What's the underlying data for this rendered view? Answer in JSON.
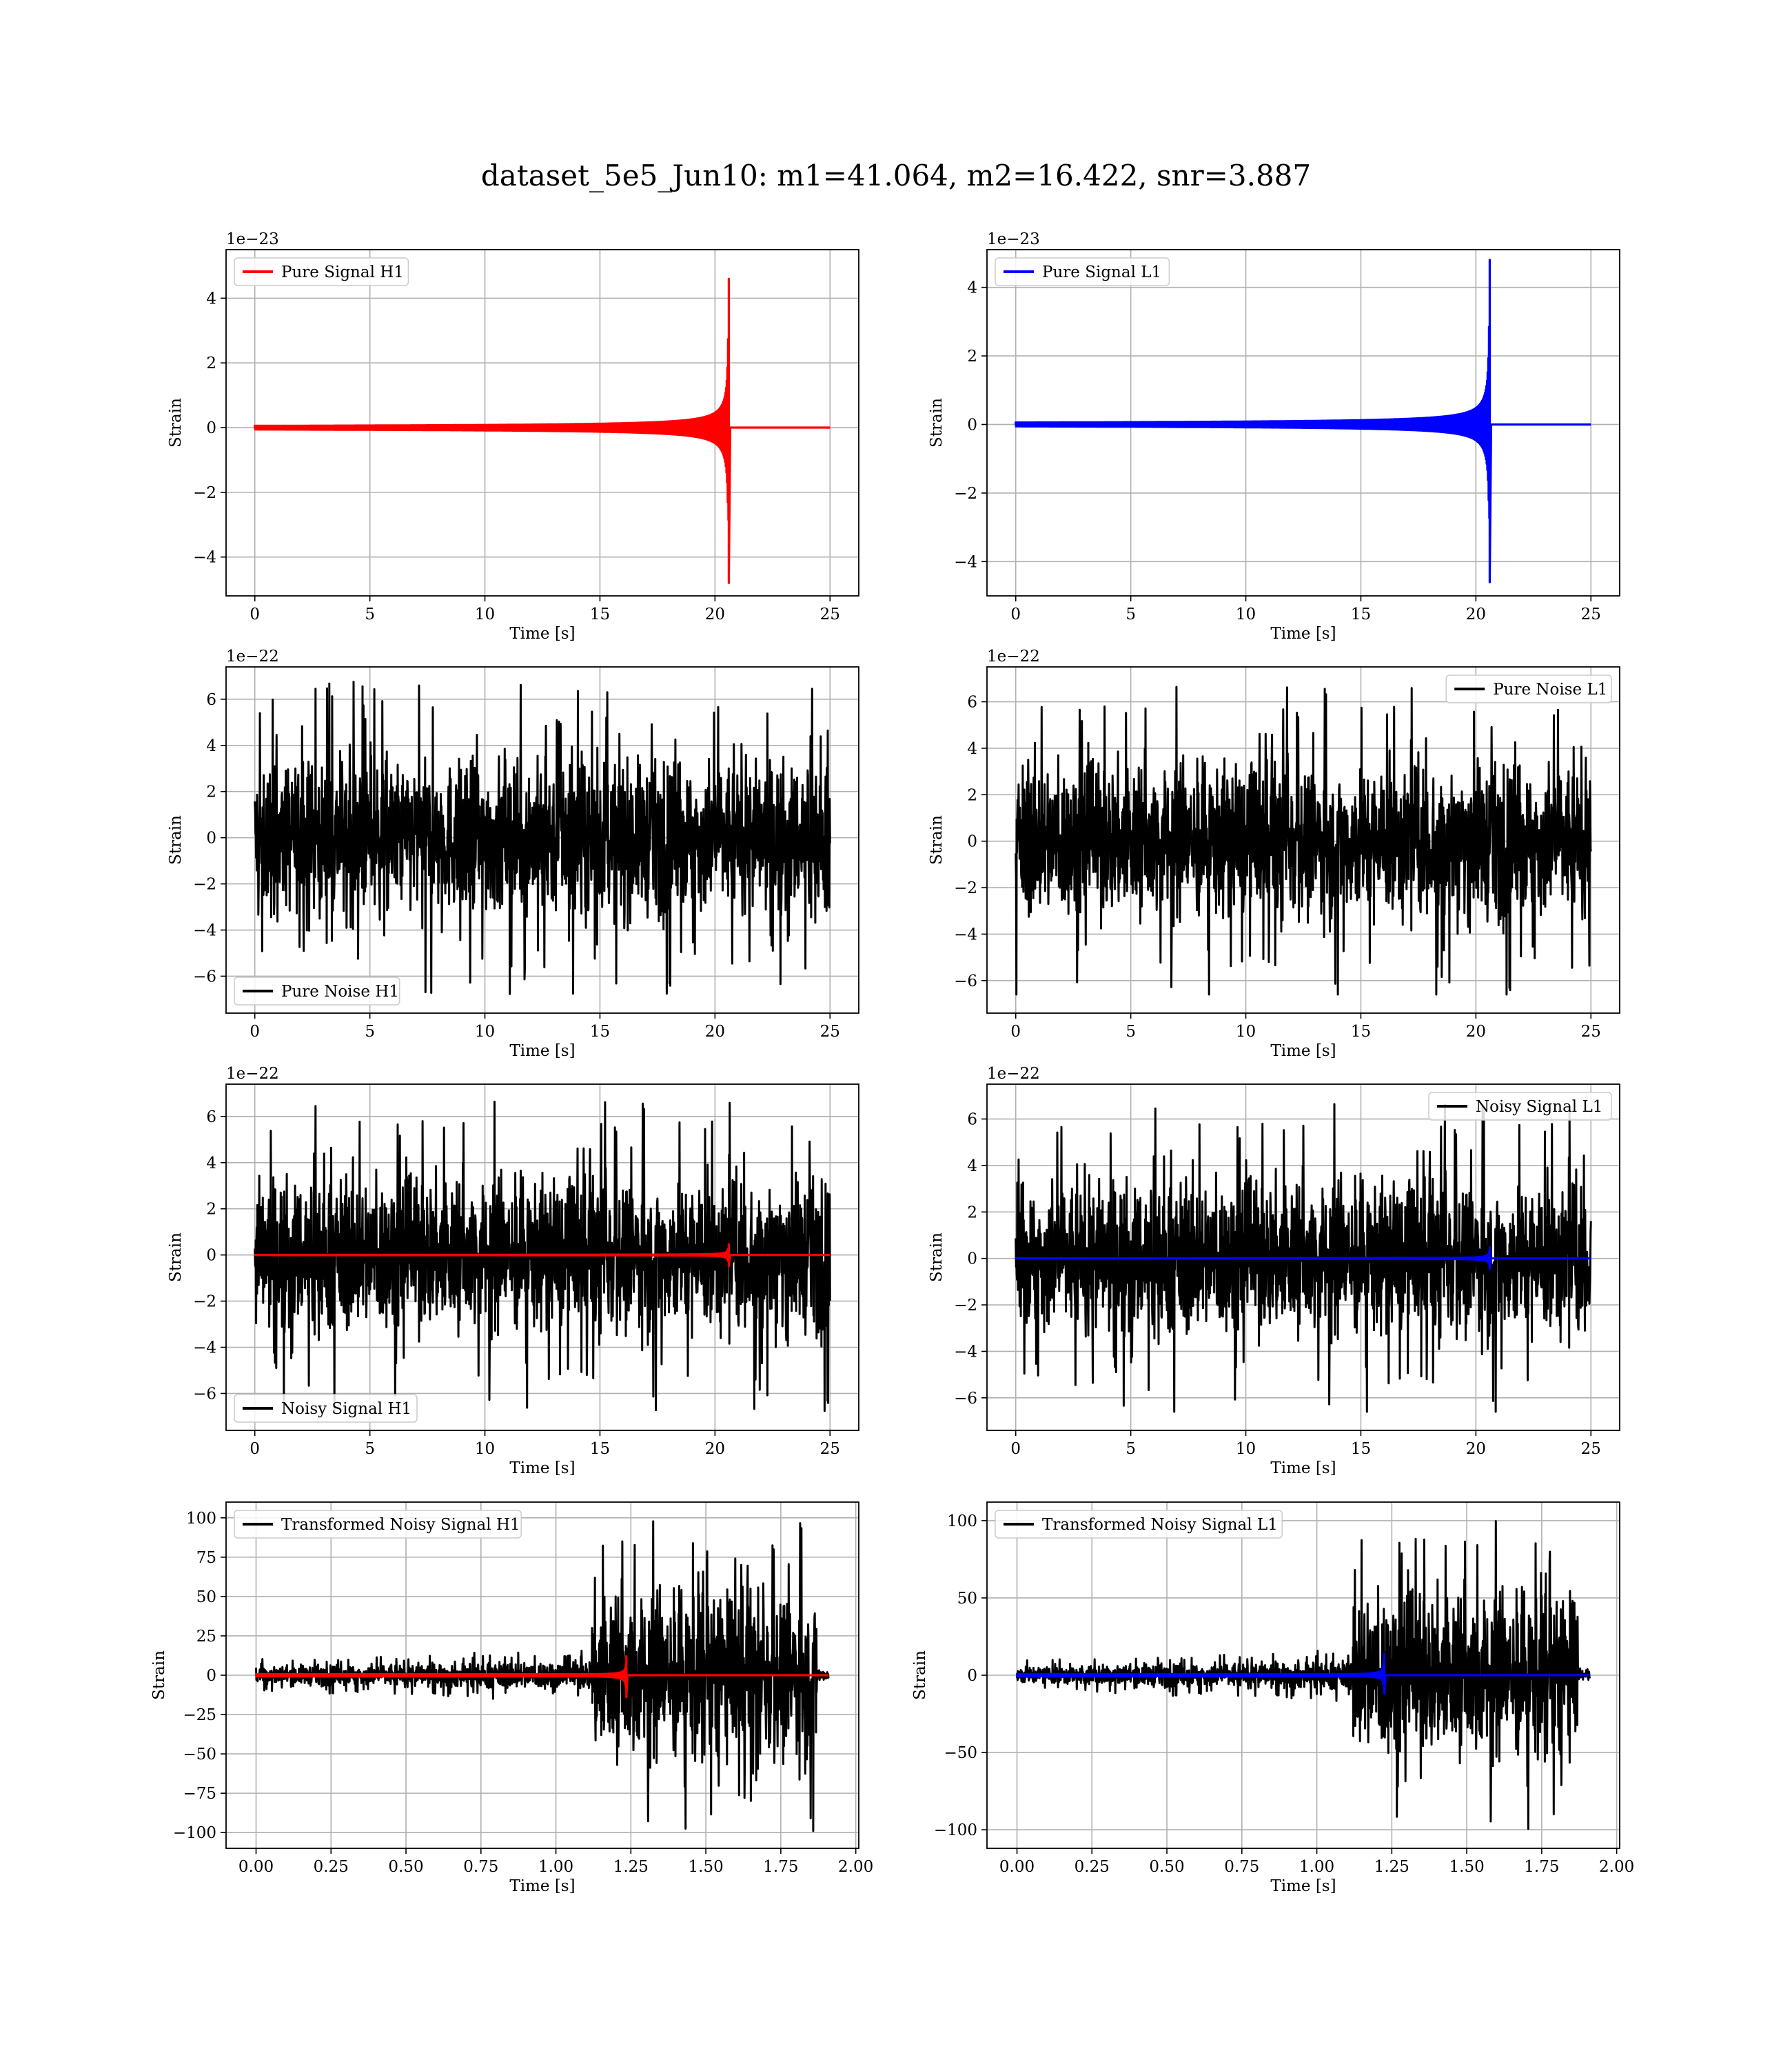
{
  "figure": {
    "title": "dataset_5e5_Jun10: m1=41.064, m2=16.422, snr=3.887"
  },
  "colors": {
    "signal_h1": "#ff0000",
    "signal_l1": "#0000ff",
    "noise": "#000000",
    "grid": "#b0b0b0"
  },
  "chart_data": [
    {
      "id": "pure-signal-h1",
      "type": "line",
      "grid": true,
      "legend_position": "upper-left",
      "xlabel": "Time [s]",
      "ylabel": "Strain",
      "offset_text": "1e−23",
      "xlim": [
        -1.25,
        26.25
      ],
      "ylim": [
        -5.2,
        5.5
      ],
      "xticks": [
        0,
        5,
        10,
        15,
        20,
        25
      ],
      "xtick_labels": [
        "0",
        "5",
        "10",
        "15",
        "20",
        "25"
      ],
      "yticks": [
        -4,
        -2,
        0,
        2,
        4
      ],
      "ytick_labels": [
        "−4",
        "−2",
        "0",
        "2",
        "4"
      ],
      "series": [
        {
          "name": "Pure Signal H1",
          "color": "#ff0000",
          "kind": "chirp",
          "x_start": 0,
          "x_end": 25,
          "x_merge": 20.6,
          "peak": 4.6,
          "trough": -4.8,
          "start_amp": 0.01,
          "baseline": 0
        }
      ]
    },
    {
      "id": "pure-signal-l1",
      "type": "line",
      "grid": true,
      "legend_position": "upper-left",
      "xlabel": "Time [s]",
      "ylabel": "Strain",
      "offset_text": "1e−23",
      "xlim": [
        -1.25,
        26.25
      ],
      "ylim": [
        -5.0,
        5.1
      ],
      "xticks": [
        0,
        5,
        10,
        15,
        20,
        25
      ],
      "xtick_labels": [
        "0",
        "5",
        "10",
        "15",
        "20",
        "25"
      ],
      "yticks": [
        -4,
        -2,
        0,
        2,
        4
      ],
      "ytick_labels": [
        "−4",
        "−2",
        "0",
        "2",
        "4"
      ],
      "series": [
        {
          "name": "Pure Signal L1",
          "color": "#0000ff",
          "kind": "chirp",
          "x_start": 0,
          "x_end": 25,
          "x_merge": 20.6,
          "peak": 4.8,
          "trough": -4.6,
          "start_amp": 0.01,
          "baseline": 0
        }
      ]
    },
    {
      "id": "pure-noise-h1",
      "type": "line",
      "grid": true,
      "legend_position": "lower-left",
      "xlabel": "Time [s]",
      "ylabel": "Strain",
      "offset_text": "1e−22",
      "xlim": [
        -1.25,
        26.25
      ],
      "ylim": [
        -7.6,
        7.4
      ],
      "xticks": [
        0,
        5,
        10,
        15,
        20,
        25
      ],
      "xtick_labels": [
        "0",
        "5",
        "10",
        "15",
        "20",
        "25"
      ],
      "yticks": [
        -6,
        -4,
        -2,
        0,
        2,
        4,
        6
      ],
      "ytick_labels": [
        "−6",
        "−4",
        "−2",
        "0",
        "2",
        "4",
        "6"
      ],
      "series": [
        {
          "name": "Pure Noise H1",
          "color": "#000000",
          "kind": "noise",
          "x_start": 0,
          "x_end": 25,
          "core": 2.8,
          "max": 6.8,
          "min": -6.9
        }
      ]
    },
    {
      "id": "pure-noise-l1",
      "type": "line",
      "grid": true,
      "legend_position": "upper-right",
      "xlabel": "Time [s]",
      "ylabel": "Strain",
      "offset_text": "1e−22",
      "xlim": [
        -1.25,
        26.25
      ],
      "ylim": [
        -7.4,
        7.5
      ],
      "xticks": [
        0,
        5,
        10,
        15,
        20,
        25
      ],
      "xtick_labels": [
        "0",
        "5",
        "10",
        "15",
        "20",
        "25"
      ],
      "yticks": [
        -6,
        -4,
        -2,
        0,
        2,
        4,
        6
      ],
      "ytick_labels": [
        "−6",
        "−4",
        "−2",
        "0",
        "2",
        "4",
        "6"
      ],
      "series": [
        {
          "name": "Pure Noise L1",
          "color": "#000000",
          "kind": "noise",
          "x_start": 0,
          "x_end": 25,
          "core": 2.8,
          "max": 6.8,
          "min": -6.6
        }
      ]
    },
    {
      "id": "noisy-signal-h1",
      "type": "line",
      "grid": true,
      "legend_position": "lower-left",
      "xlabel": "Time [s]",
      "ylabel": "Strain",
      "offset_text": "1e−22",
      "xlim": [
        -1.25,
        26.25
      ],
      "ylim": [
        -7.6,
        7.4
      ],
      "xticks": [
        0,
        5,
        10,
        15,
        20,
        25
      ],
      "xtick_labels": [
        "0",
        "5",
        "10",
        "15",
        "20",
        "25"
      ],
      "yticks": [
        -6,
        -4,
        -2,
        0,
        2,
        4,
        6
      ],
      "ytick_labels": [
        "−6",
        "−4",
        "−2",
        "0",
        "2",
        "4",
        "6"
      ],
      "series": [
        {
          "name": "Noisy Signal H1",
          "color": "#000000",
          "kind": "noise",
          "x_start": 0,
          "x_end": 25,
          "core": 2.8,
          "max": 6.8,
          "min": -6.9
        },
        {
          "color": "#ff0000",
          "kind": "chirp",
          "x_start": 0,
          "x_end": 25,
          "x_merge": 20.6,
          "peak": 0.46,
          "trough": -0.48,
          "start_amp": 0.002,
          "baseline": 0
        }
      ]
    },
    {
      "id": "noisy-signal-l1",
      "type": "line",
      "grid": true,
      "legend_position": "upper-right",
      "xlabel": "Time [s]",
      "ylabel": "Strain",
      "offset_text": "1e−22",
      "xlim": [
        -1.25,
        26.25
      ],
      "ylim": [
        -7.4,
        7.5
      ],
      "xticks": [
        0,
        5,
        10,
        15,
        20,
        25
      ],
      "xtick_labels": [
        "0",
        "5",
        "10",
        "15",
        "20",
        "25"
      ],
      "yticks": [
        -6,
        -4,
        -2,
        0,
        2,
        4,
        6
      ],
      "ytick_labels": [
        "−6",
        "−4",
        "−2",
        "0",
        "2",
        "4",
        "6"
      ],
      "series": [
        {
          "name": "Noisy Signal L1",
          "color": "#000000",
          "kind": "noise",
          "x_start": 0,
          "x_end": 25,
          "core": 2.8,
          "max": 6.8,
          "min": -6.6
        },
        {
          "color": "#0000ff",
          "kind": "chirp",
          "x_start": 0,
          "x_end": 25,
          "x_merge": 20.6,
          "peak": 0.48,
          "trough": -0.46,
          "start_amp": 0.002,
          "baseline": 0
        }
      ]
    },
    {
      "id": "transformed-noisy-signal-h1",
      "type": "line",
      "grid": true,
      "legend_position": "upper-left",
      "xlabel": "Time [s]",
      "ylabel": "Strain",
      "offset_text": "",
      "xlim": [
        -0.1,
        2.01
      ],
      "ylim": [
        -110,
        110
      ],
      "xticks": [
        0,
        0.25,
        0.5,
        0.75,
        1.0,
        1.25,
        1.5,
        1.75,
        2.0
      ],
      "xtick_labels": [
        "0.00",
        "0.25",
        "0.50",
        "0.75",
        "1.00",
        "1.25",
        "1.50",
        "1.75",
        "2.00"
      ],
      "yticks": [
        -100,
        -75,
        -50,
        -25,
        0,
        25,
        50,
        75,
        100
      ],
      "ytick_labels": [
        "−100",
        "−75",
        "−50",
        "−25",
        "0",
        "25",
        "50",
        "75",
        "100"
      ],
      "series": [
        {
          "name": "Transformed Noisy Signal H1",
          "color": "#000000",
          "kind": "transformed",
          "x_start": 0,
          "x_end": 1.91,
          "x_jump": 1.12,
          "x_stop": 1.87,
          "pre_core": 9,
          "pre_max": 17,
          "post_core": 45,
          "post_max": 100,
          "post_min": -100,
          "tail": 4
        },
        {
          "color": "#ff0000",
          "kind": "chirp",
          "x_start": 0,
          "x_end": 1.91,
          "x_merge": 1.235,
          "peak": 12,
          "trough": -14,
          "start_amp": 0.05,
          "baseline": 0
        }
      ]
    },
    {
      "id": "transformed-noisy-signal-l1",
      "type": "line",
      "grid": true,
      "legend_position": "upper-left",
      "xlabel": "Time [s]",
      "ylabel": "Strain",
      "offset_text": "",
      "xlim": [
        -0.1,
        2.01
      ],
      "ylim": [
        -112,
        112
      ],
      "xticks": [
        0,
        0.25,
        0.5,
        0.75,
        1.0,
        1.25,
        1.5,
        1.75,
        2.0
      ],
      "xtick_labels": [
        "0.00",
        "0.25",
        "0.50",
        "0.75",
        "1.00",
        "1.25",
        "1.50",
        "1.75",
        "2.00"
      ],
      "yticks": [
        -100,
        -50,
        0,
        50,
        100
      ],
      "ytick_labels": [
        "−100",
        "−50",
        "0",
        "50",
        "100"
      ],
      "series": [
        {
          "name": "Transformed Noisy Signal L1",
          "color": "#000000",
          "kind": "transformed",
          "x_start": 0,
          "x_end": 1.91,
          "x_jump": 1.12,
          "x_stop": 1.87,
          "pre_core": 9,
          "pre_max": 17,
          "post_core": 45,
          "post_max": 102,
          "post_min": -105,
          "tail": 4
        },
        {
          "color": "#0000ff",
          "kind": "chirp",
          "x_start": 0,
          "x_end": 1.91,
          "x_merge": 1.225,
          "peak": 14,
          "trough": -12,
          "start_amp": 0.05,
          "baseline": 0
        }
      ]
    }
  ]
}
